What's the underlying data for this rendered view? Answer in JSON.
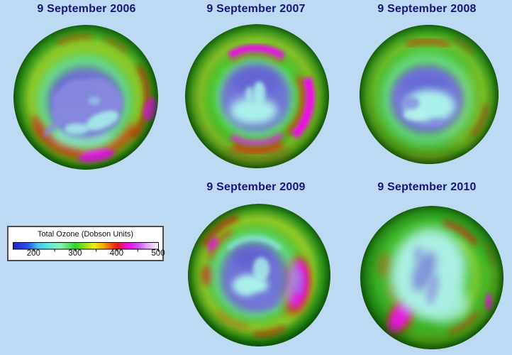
{
  "figure": {
    "background_color": "#BED9F2",
    "title_color": "#15157D",
    "description_type": "antarctic-total-ozone-maps"
  },
  "panels": [
    {
      "year": "2006",
      "title": "9 September 2006"
    },
    {
      "year": "2007",
      "title": "9 September 2007"
    },
    {
      "year": "2008",
      "title": "9 September 2008"
    },
    {
      "year": "2009",
      "title": "9 September 2009"
    },
    {
      "year": "2010",
      "title": "9 September 2010"
    }
  ],
  "legend": {
    "title": "Total Ozone (Dobson Units)",
    "scale_min": 150,
    "scale_max": 500,
    "labeled_ticks": [
      200,
      300,
      400,
      500
    ],
    "minor_ticks": [
      200,
      250,
      300,
      350,
      400,
      450,
      500
    ],
    "gradient_stops": [
      {
        "value": 150,
        "color": "#2222cc"
      },
      {
        "value": 185,
        "color": "#2a52e8"
      },
      {
        "value": 211,
        "color": "#45c8f0"
      },
      {
        "value": 237,
        "color": "#5aebd7"
      },
      {
        "value": 263,
        "color": "#8cf2b4"
      },
      {
        "value": 300,
        "color": "#2ed42e"
      },
      {
        "value": 324,
        "color": "#9be020"
      },
      {
        "value": 345,
        "color": "#eeee10"
      },
      {
        "value": 368,
        "color": "#f5a800"
      },
      {
        "value": 390,
        "color": "#f23d10"
      },
      {
        "value": 402,
        "color": "#e81616"
      },
      {
        "value": 415,
        "color": "#ed0f9e"
      },
      {
        "value": 429,
        "color": "#f00ff0"
      },
      {
        "value": 450,
        "color": "#c84ff0"
      },
      {
        "value": 472,
        "color": "#e3a6f8"
      },
      {
        "value": 500,
        "color": "#fff8ff"
      }
    ]
  }
}
